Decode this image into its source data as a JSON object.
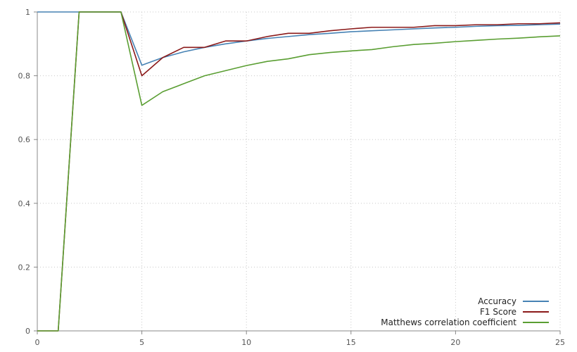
{
  "chart_data": {
    "type": "line",
    "title": "",
    "xlabel": "",
    "ylabel": "",
    "xlim": [
      0,
      25
    ],
    "ylim": [
      0,
      1
    ],
    "x_ticks": [
      "0",
      "5",
      "10",
      "15",
      "20",
      "25"
    ],
    "y_ticks": [
      "0",
      "0.2",
      "0.4",
      "0.6",
      "0.8",
      "1"
    ],
    "grid": true,
    "legend_position": "bottom-right",
    "x": [
      0,
      1,
      2,
      3,
      4,
      5,
      6,
      7,
      8,
      9,
      10,
      11,
      12,
      13,
      14,
      15,
      16,
      17,
      18,
      19,
      20,
      21,
      22,
      23,
      24,
      25
    ],
    "series": [
      {
        "name": "Accuracy",
        "color": "#4682b4",
        "values": [
          1,
          1,
          1,
          1,
          1,
          0.833,
          0.857,
          0.875,
          0.889,
          0.9,
          0.909,
          0.917,
          0.923,
          0.929,
          0.933,
          0.938,
          0.941,
          0.944,
          0.947,
          0.95,
          0.952,
          0.955,
          0.957,
          0.958,
          0.96,
          0.962
        ]
      },
      {
        "name": "F1 Score",
        "color": "#8b1a1a",
        "values": [
          0,
          0,
          1,
          1,
          1,
          0.8,
          0.857,
          0.889,
          0.889,
          0.909,
          0.909,
          0.923,
          0.933,
          0.933,
          0.941,
          0.947,
          0.952,
          0.952,
          0.952,
          0.957,
          0.957,
          0.96,
          0.96,
          0.963,
          0.963,
          0.966
        ]
      },
      {
        "name": "Matthews correlation coefficient",
        "color": "#5a9e32",
        "values": [
          0,
          0,
          1,
          1,
          1,
          0.707,
          0.75,
          0.775,
          0.8,
          0.816,
          0.832,
          0.845,
          0.853,
          0.866,
          0.873,
          0.878,
          0.882,
          0.891,
          0.898,
          0.902,
          0.907,
          0.911,
          0.915,
          0.918,
          0.922,
          0.925
        ]
      }
    ]
  }
}
